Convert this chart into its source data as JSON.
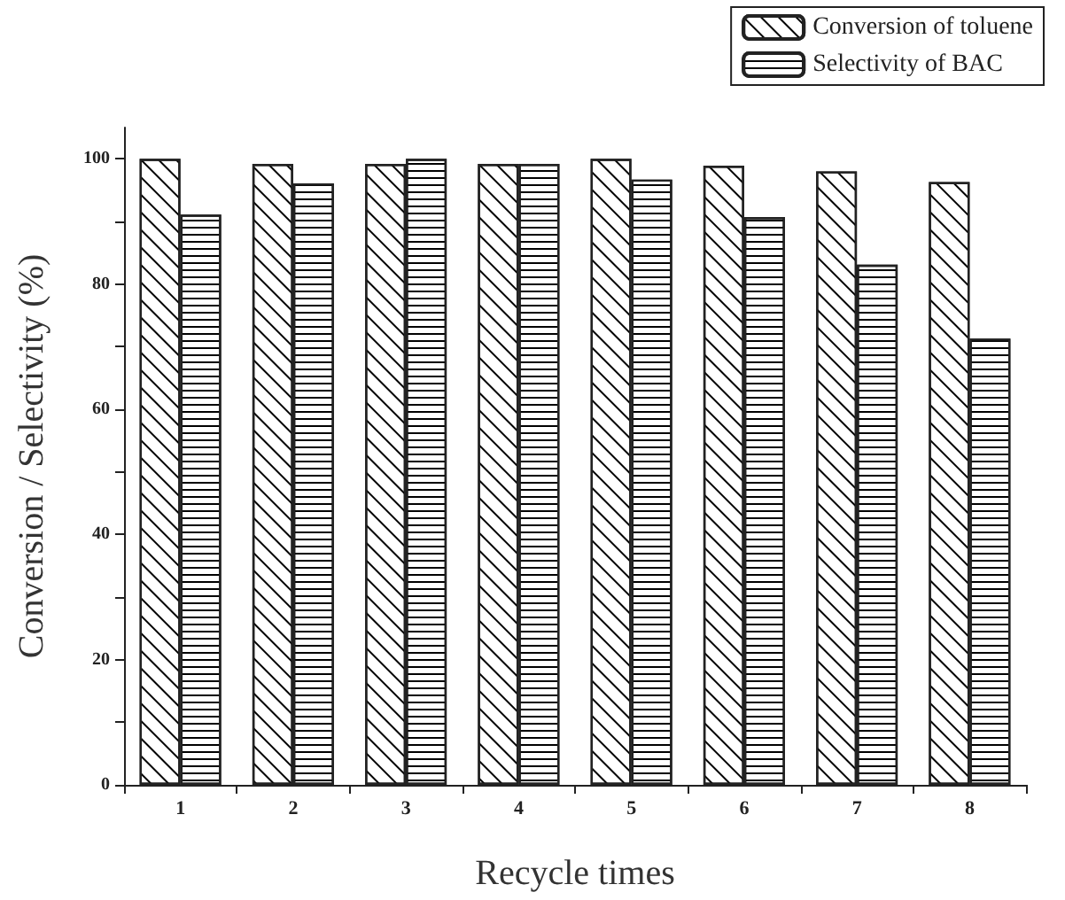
{
  "chart_data": {
    "type": "bar",
    "xlabel": "Recycle times",
    "ylabel": "Conversion / Selectivity (%)",
    "categories": [
      "1",
      "2",
      "3",
      "4",
      "5",
      "6",
      "7",
      "8"
    ],
    "series": [
      {
        "name": "Conversion of toluene",
        "color": "#ffffff",
        "values": [
          100,
          99.2,
          99.2,
          99.2,
          100,
          98.9,
          98,
          96.3
        ]
      },
      {
        "name": "Selectivity of BAC",
        "color": "#ffffff",
        "values": [
          91.1,
          96.1,
          100,
          99.2,
          96.7,
          90.7,
          83.1,
          71.3
        ]
      }
    ],
    "ylim": [
      0,
      105
    ],
    "yticks": [
      0,
      20,
      40,
      60,
      80,
      100
    ],
    "grid": false,
    "legend": "top right"
  }
}
